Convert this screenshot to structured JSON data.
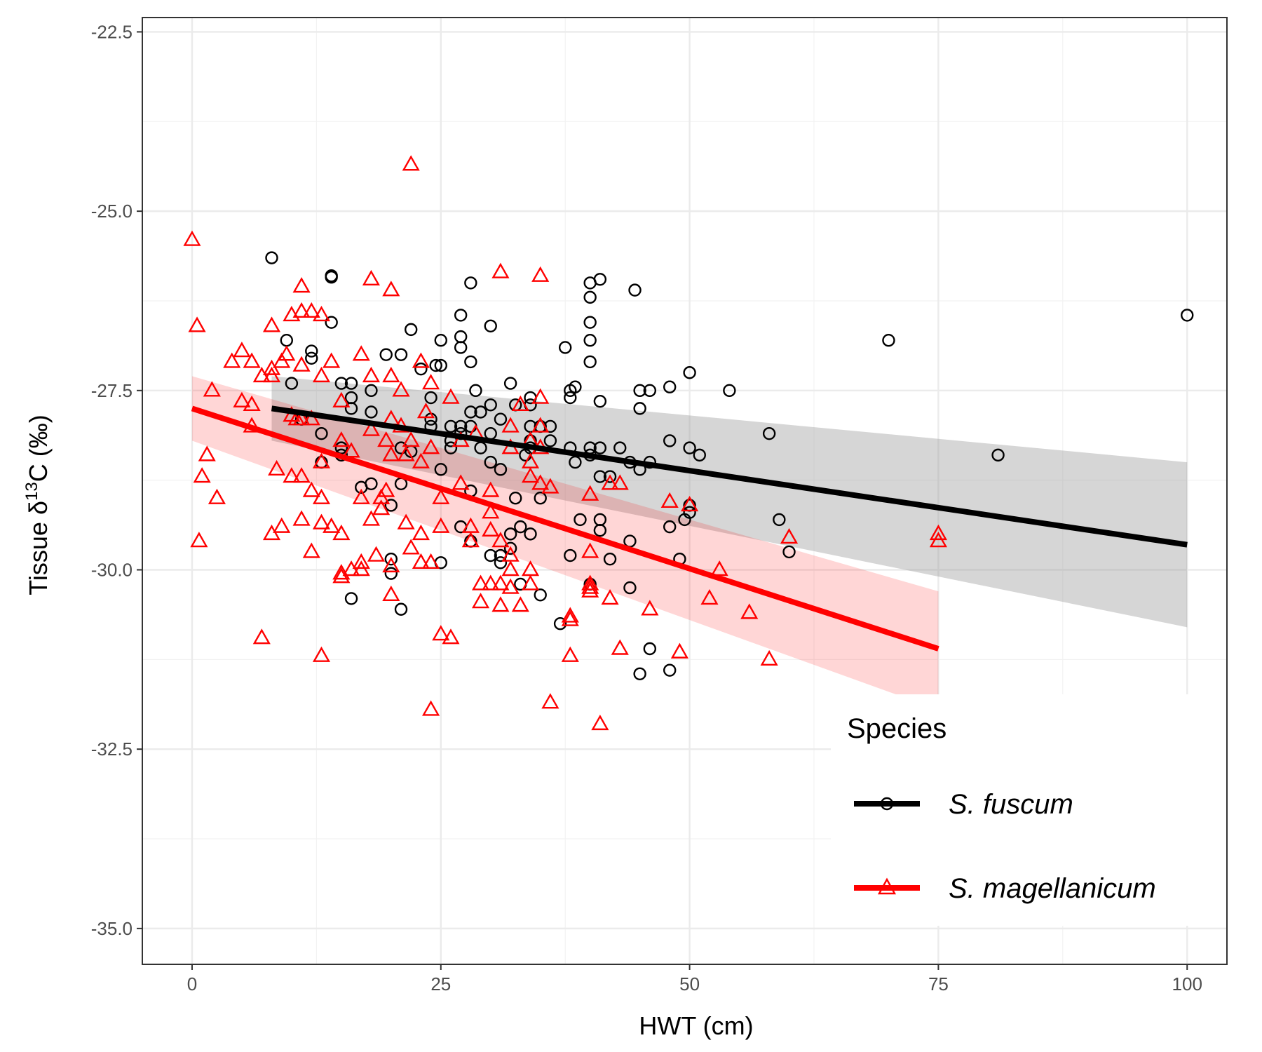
{
  "chart_data": {
    "type": "scatter",
    "xlabel": "HWT (cm)",
    "ylabel": {
      "prefix": "Tissue δ",
      "superscript": "13",
      "suffix": "C (‰)"
    },
    "xlim": [
      -5,
      104
    ],
    "ylim": [
      -35.5,
      -22.3
    ],
    "x_ticks": [
      0,
      25,
      50,
      75,
      100
    ],
    "y_ticks": [
      -35.0,
      -32.5,
      -30.0,
      -27.5,
      -25.0,
      -22.5
    ],
    "x_tick_labels": [
      "0",
      "25",
      "50",
      "75",
      "100"
    ],
    "y_tick_labels": [
      "-35.0",
      "-32.5",
      "-30.0",
      "-27.5",
      "-25.0",
      "-22.5"
    ],
    "grid": true,
    "legend": {
      "title": "Species",
      "placement": "bottom-right",
      "entries": [
        "S. fuscum",
        "S. magellanicum"
      ]
    },
    "series": [
      {
        "name": "S. fuscum",
        "color": "#000000",
        "marker": "circle",
        "fit": {
          "x": [
            8,
            100
          ],
          "y": [
            -27.75,
            -29.65
          ],
          "ci_lower": [
            -28.2,
            -30.8
          ],
          "ci_upper": [
            -27.3,
            -28.5
          ]
        },
        "points": [
          [
            8,
            -25.65
          ],
          [
            9.5,
            -26.8
          ],
          [
            10,
            -27.4
          ],
          [
            11,
            -27.9
          ],
          [
            12,
            -27.05
          ],
          [
            12,
            -26.95
          ],
          [
            13,
            -28.1
          ],
          [
            13,
            -28.5
          ],
          [
            14,
            -25.9
          ],
          [
            14,
            -25.92
          ],
          [
            14,
            -26.55
          ],
          [
            15,
            -27.4
          ],
          [
            15,
            -28.3
          ],
          [
            15,
            -28.4
          ],
          [
            16,
            -27.4
          ],
          [
            16,
            -27.6
          ],
          [
            16,
            -27.75
          ],
          [
            16,
            -30.4
          ],
          [
            17,
            -28.85
          ],
          [
            18,
            -27.5
          ],
          [
            18,
            -27.8
          ],
          [
            18,
            -28.8
          ],
          [
            19.5,
            -27.0
          ],
          [
            20,
            -29.1
          ],
          [
            20,
            -29.85
          ],
          [
            20,
            -30.05
          ],
          [
            21,
            -27.0
          ],
          [
            21,
            -28.3
          ],
          [
            21,
            -28.8
          ],
          [
            21,
            -30.55
          ],
          [
            22,
            -26.65
          ],
          [
            22,
            -28.35
          ],
          [
            23,
            -27.2
          ],
          [
            24,
            -27.6
          ],
          [
            24,
            -28.0
          ],
          [
            24,
            -27.9
          ],
          [
            24.5,
            -27.15
          ],
          [
            25,
            -26.8
          ],
          [
            25,
            -27.15
          ],
          [
            25,
            -28.6
          ],
          [
            25,
            -29.9
          ],
          [
            26,
            -28.2
          ],
          [
            26,
            -28.3
          ],
          [
            26,
            -28.0
          ],
          [
            27,
            -26.45
          ],
          [
            27,
            -26.75
          ],
          [
            27,
            -26.9
          ],
          [
            27,
            -28.0
          ],
          [
            27,
            -28.1
          ],
          [
            27,
            -29.4
          ],
          [
            28,
            -26.0
          ],
          [
            28,
            -27.1
          ],
          [
            28,
            -27.8
          ],
          [
            28,
            -28.0
          ],
          [
            28,
            -28.9
          ],
          [
            28,
            -29.6
          ],
          [
            28.5,
            -27.5
          ],
          [
            29,
            -28.3
          ],
          [
            29,
            -27.8
          ],
          [
            30,
            -26.6
          ],
          [
            30,
            -27.7
          ],
          [
            30,
            -28.1
          ],
          [
            30,
            -28.5
          ],
          [
            30,
            -29.8
          ],
          [
            31,
            -27.9
          ],
          [
            31,
            -28.6
          ],
          [
            31,
            -29.8
          ],
          [
            31,
            -29.9
          ],
          [
            32,
            -27.4
          ],
          [
            32,
            -29.5
          ],
          [
            32,
            -29.7
          ],
          [
            32.5,
            -27.7
          ],
          [
            32.5,
            -29.0
          ],
          [
            33,
            -29.4
          ],
          [
            33,
            -30.2
          ],
          [
            33.5,
            -28.4
          ],
          [
            34,
            -27.6
          ],
          [
            34,
            -27.7
          ],
          [
            34,
            -28.0
          ],
          [
            34,
            -28.2
          ],
          [
            34,
            -28.3
          ],
          [
            34,
            -29.5
          ],
          [
            35,
            -28.0
          ],
          [
            35,
            -29.0
          ],
          [
            35,
            -30.35
          ],
          [
            36,
            -28.0
          ],
          [
            36,
            -28.2
          ],
          [
            37,
            -30.75
          ],
          [
            37.5,
            -26.9
          ],
          [
            38,
            -27.5
          ],
          [
            38,
            -27.6
          ],
          [
            38,
            -28.3
          ],
          [
            38,
            -29.8
          ],
          [
            38.5,
            -27.45
          ],
          [
            38.5,
            -28.5
          ],
          [
            39,
            -29.3
          ],
          [
            40,
            -26.0
          ],
          [
            40,
            -26.2
          ],
          [
            40,
            -26.55
          ],
          [
            40,
            -26.8
          ],
          [
            40,
            -27.1
          ],
          [
            40,
            -28.3
          ],
          [
            40,
            -28.4
          ],
          [
            40,
            -30.2
          ],
          [
            41,
            -25.95
          ],
          [
            41,
            -27.65
          ],
          [
            41,
            -28.3
          ],
          [
            41,
            -28.7
          ],
          [
            41,
            -29.3
          ],
          [
            41,
            -29.45
          ],
          [
            42,
            -28.7
          ],
          [
            42,
            -29.85
          ],
          [
            43,
            -28.3
          ],
          [
            44,
            -28.5
          ],
          [
            44,
            -29.6
          ],
          [
            44,
            -30.25
          ],
          [
            44.5,
            -26.1
          ],
          [
            45,
            -27.5
          ],
          [
            45,
            -27.75
          ],
          [
            45,
            -28.6
          ],
          [
            45,
            -31.45
          ],
          [
            46,
            -27.5
          ],
          [
            46,
            -28.5
          ],
          [
            46,
            -31.1
          ],
          [
            48,
            -27.45
          ],
          [
            48,
            -28.2
          ],
          [
            48,
            -29.4
          ],
          [
            48,
            -31.4
          ],
          [
            49,
            -29.85
          ],
          [
            49.5,
            -29.3
          ],
          [
            50,
            -27.25
          ],
          [
            50,
            -28.3
          ],
          [
            50,
            -29.1
          ],
          [
            50,
            -29.2
          ],
          [
            51,
            -28.4
          ],
          [
            54,
            -27.5
          ],
          [
            58,
            -28.1
          ],
          [
            59,
            -29.3
          ],
          [
            60,
            -29.75
          ],
          [
            70,
            -26.8
          ],
          [
            81,
            -28.4
          ],
          [
            100,
            -26.45
          ]
        ]
      },
      {
        "name": "S. magellanicum",
        "color": "#ff0000",
        "marker": "triangle",
        "fit": {
          "x": [
            0,
            75
          ],
          "y": [
            -27.75,
            -31.1
          ],
          "ci_lower": [
            -28.2,
            -31.95
          ],
          "ci_upper": [
            -27.3,
            -30.3
          ]
        },
        "points": [
          [
            0,
            -25.4
          ],
          [
            0.5,
            -26.6
          ],
          [
            0.7,
            -29.6
          ],
          [
            1,
            -28.7
          ],
          [
            1.5,
            -28.4
          ],
          [
            2,
            -27.5
          ],
          [
            2.5,
            -29.0
          ],
          [
            4,
            -27.1
          ],
          [
            5,
            -26.95
          ],
          [
            5,
            -27.65
          ],
          [
            6,
            -27.1
          ],
          [
            6,
            -27.7
          ],
          [
            6,
            -28.0
          ],
          [
            7,
            -27.3
          ],
          [
            7,
            -30.95
          ],
          [
            8,
            -26.6
          ],
          [
            8,
            -27.2
          ],
          [
            8,
            -27.3
          ],
          [
            8,
            -29.5
          ],
          [
            8.5,
            -28.6
          ],
          [
            9,
            -27.1
          ],
          [
            9,
            -29.4
          ],
          [
            9.5,
            -27.0
          ],
          [
            10,
            -26.45
          ],
          [
            10,
            -27.85
          ],
          [
            10,
            -28.7
          ],
          [
            10.5,
            -27.9
          ],
          [
            11,
            -26.05
          ],
          [
            11,
            -26.4
          ],
          [
            11,
            -27.9
          ],
          [
            11,
            -27.15
          ],
          [
            11,
            -28.7
          ],
          [
            11,
            -29.3
          ],
          [
            12,
            -26.4
          ],
          [
            12,
            -27.9
          ],
          [
            12,
            -28.9
          ],
          [
            12,
            -29.75
          ],
          [
            13,
            -26.45
          ],
          [
            13,
            -27.3
          ],
          [
            13,
            -28.5
          ],
          [
            13,
            -29.0
          ],
          [
            13,
            -29.35
          ],
          [
            13,
            -31.2
          ],
          [
            14,
            -27.1
          ],
          [
            14,
            -29.4
          ],
          [
            15,
            -27.65
          ],
          [
            15,
            -28.2
          ],
          [
            15,
            -29.5
          ],
          [
            15,
            -30.05
          ],
          [
            15,
            -30.1
          ],
          [
            16,
            -28.35
          ],
          [
            16,
            -30.0
          ],
          [
            17,
            -27.0
          ],
          [
            17,
            -29.0
          ],
          [
            17,
            -29.9
          ],
          [
            17,
            -30.0
          ],
          [
            18,
            -25.95
          ],
          [
            18,
            -27.3
          ],
          [
            18,
            -28.05
          ],
          [
            18,
            -29.3
          ],
          [
            18.5,
            -29.8
          ],
          [
            19,
            -29.0
          ],
          [
            19,
            -29.15
          ],
          [
            19.5,
            -28.2
          ],
          [
            19.5,
            -28.9
          ],
          [
            20,
            -26.1
          ],
          [
            20,
            -27.3
          ],
          [
            20,
            -27.9
          ],
          [
            20,
            -28.4
          ],
          [
            20,
            -29.95
          ],
          [
            20,
            -30.35
          ],
          [
            21,
            -27.5
          ],
          [
            21,
            -28.0
          ],
          [
            21.5,
            -28.4
          ],
          [
            21.5,
            -29.35
          ],
          [
            22,
            -24.35
          ],
          [
            22,
            -28.2
          ],
          [
            22,
            -29.7
          ],
          [
            23,
            -27.1
          ],
          [
            23,
            -28.5
          ],
          [
            23,
            -29.5
          ],
          [
            23,
            -29.9
          ],
          [
            23.5,
            -27.8
          ],
          [
            24,
            -27.4
          ],
          [
            24,
            -28.3
          ],
          [
            24,
            -29.9
          ],
          [
            24,
            -31.95
          ],
          [
            25,
            -29.0
          ],
          [
            25,
            -29.4
          ],
          [
            25,
            -30.9
          ],
          [
            26,
            -27.6
          ],
          [
            26,
            -30.95
          ],
          [
            27,
            -28.2
          ],
          [
            27,
            -28.8
          ],
          [
            28,
            -29.4
          ],
          [
            28,
            -29.6
          ],
          [
            28.5,
            -28.1
          ],
          [
            29,
            -30.2
          ],
          [
            29,
            -30.45
          ],
          [
            30,
            -28.9
          ],
          [
            30,
            -29.2
          ],
          [
            30,
            -29.45
          ],
          [
            30,
            -30.2
          ],
          [
            31,
            -25.85
          ],
          [
            31,
            -29.6
          ],
          [
            31,
            -30.2
          ],
          [
            31,
            -30.5
          ],
          [
            32,
            -28.0
          ],
          [
            32,
            -28.3
          ],
          [
            32,
            -29.8
          ],
          [
            32,
            -30.0
          ],
          [
            32,
            -30.25
          ],
          [
            33,
            -27.7
          ],
          [
            33,
            -30.5
          ],
          [
            34,
            -28.2
          ],
          [
            34,
            -28.5
          ],
          [
            34,
            -28.7
          ],
          [
            34,
            -30.2
          ],
          [
            34,
            -30.0
          ],
          [
            35,
            -25.9
          ],
          [
            35,
            -27.6
          ],
          [
            35,
            -28.0
          ],
          [
            35,
            -28.3
          ],
          [
            35,
            -28.8
          ],
          [
            36,
            -28.85
          ],
          [
            36,
            -31.85
          ],
          [
            38,
            -30.65
          ],
          [
            38,
            -30.7
          ],
          [
            38,
            -31.2
          ],
          [
            40,
            -28.95
          ],
          [
            40,
            -29.75
          ],
          [
            40,
            -30.2
          ],
          [
            40,
            -30.25
          ],
          [
            40,
            -30.3
          ],
          [
            41,
            -32.15
          ],
          [
            42,
            -28.8
          ],
          [
            42,
            -30.4
          ],
          [
            43,
            -31.1
          ],
          [
            43,
            -28.8
          ],
          [
            46,
            -30.55
          ],
          [
            48,
            -29.05
          ],
          [
            49,
            -31.15
          ],
          [
            50,
            -29.1
          ],
          [
            52,
            -30.4
          ],
          [
            53,
            -30.0
          ],
          [
            56,
            -30.6
          ],
          [
            58,
            -31.25
          ],
          [
            60,
            -29.55
          ],
          [
            75,
            -29.5
          ],
          [
            75,
            -29.6
          ]
        ]
      }
    ]
  }
}
